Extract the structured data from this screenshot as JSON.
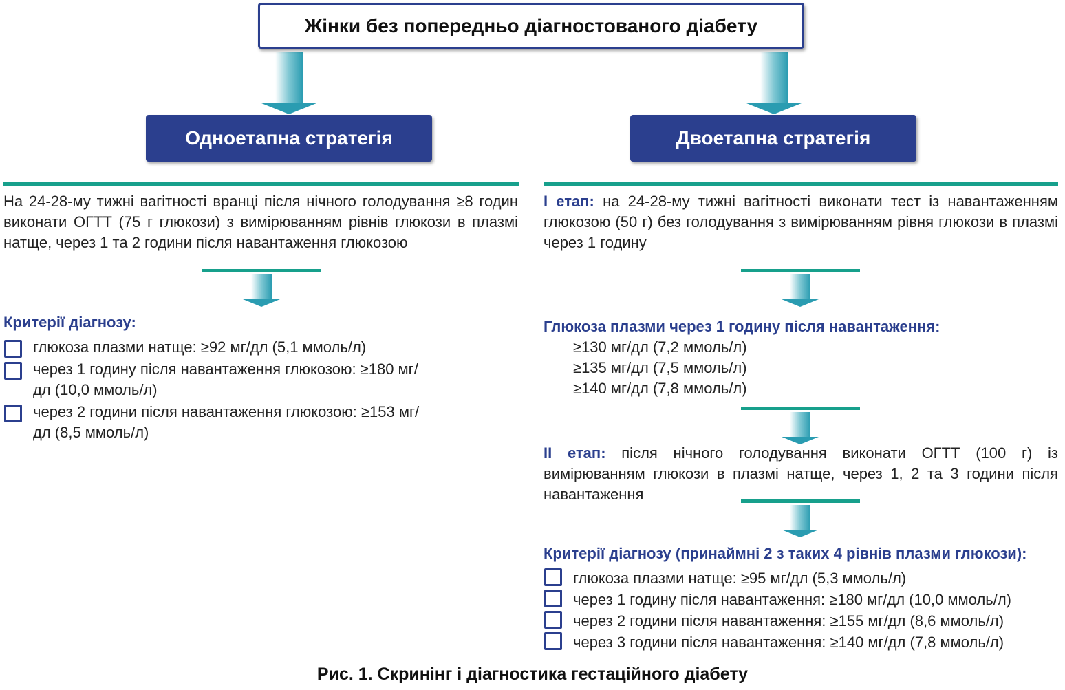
{
  "top": "Жінки без попередньо діагностованого діабету",
  "left": {
    "title": "Одноетапна стратегія",
    "text": "На 24-28-му тижні вагітності вранці після нічного голодування ≥8 годин виконати ОГТТ (75 г глюкози) з вимірюванням рівнів глюкози в плазмі натще, через 1 та 2 години після навантаження глюкозою",
    "criteria_title": "Критерії діагнозу:",
    "criteria": [
      "глюкоза плазми натще: ≥92 мг/дл (5,1 ммоль/л)",
      "через 1 годину після навантаження глюкозою: ≥180 мг/дл (10,0 ммоль/л)",
      "через 2 години після навантаження глюкозою: ≥153 мг/дл (8,5 ммоль/л)"
    ]
  },
  "right": {
    "title": "Двоетапна стратегія",
    "stage1_label": "I етап:",
    "stage1_text": "на 24-28-му тижні вагітності виконати тест із навантаженням глюкозою (50 г) без голодування з вимірюванням рівня глюкози в плазмі через 1 годину",
    "glucose_title": "Глюкоза плазми через 1 годину після навантаження:",
    "thresholds": [
      "≥130 мг/дл (7,2 ммоль/л)",
      "≥135 мг/дл (7,5 ммоль/л)",
      "≥140 мг/дл (7,8 ммоль/л)"
    ],
    "stage2_label": "II етап:",
    "stage2_text": "після нічного голодування виконати ОГТТ (100 г) із вимірюванням глюкози в плазмі натще, через 1, 2 та 3 години після навантаження",
    "criteria_title": "Критерії діагнозу (принаймні 2 з таких 4 рівнів плазми глюкози):",
    "criteria": [
      "глюкоза плазми натще: ≥95 мг/дл (5,3 ммоль/л)",
      "через 1 годину після навантаження: ≥180 мг/дл (10,0 ммоль/л)",
      "через 2 години після навантаження: ≥155 мг/дл (8,6 ммоль/л)",
      "через 3 години після навантаження: ≥140 мг/дл (7,8 ммоль/л)"
    ]
  },
  "caption": "Рис. 1. Скринінг і діагностика гестаційного діабету"
}
